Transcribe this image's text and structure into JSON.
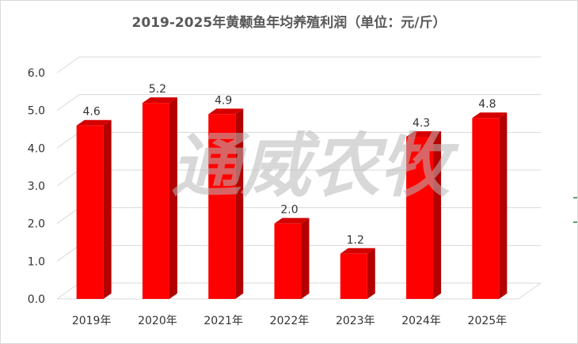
{
  "chart_data": {
    "type": "bar",
    "title": "2019-2025年黄颡鱼年均养殖利润（单位：元/斤）",
    "categories": [
      "2019年",
      "2020年",
      "2021年",
      "2022年",
      "2023年",
      "2024年",
      "2025年"
    ],
    "values": [
      4.6,
      5.2,
      4.9,
      2.0,
      1.2,
      4.3,
      4.8
    ],
    "value_labels": [
      "4.6",
      "5.2",
      "4.9",
      "2.0",
      "1.2",
      "4.3",
      "4.8"
    ],
    "yticks": [
      "0.0",
      "1.0",
      "2.0",
      "3.0",
      "4.0",
      "5.0",
      "6.0"
    ],
    "ylim": [
      0,
      6
    ],
    "xlabel": "",
    "ylabel": "",
    "grid": true,
    "legend": "none",
    "bar_color": "#ff0000",
    "bar_side_color": "#b30000",
    "bar_top_color": "#d40000"
  },
  "watermark": "通威农牧"
}
